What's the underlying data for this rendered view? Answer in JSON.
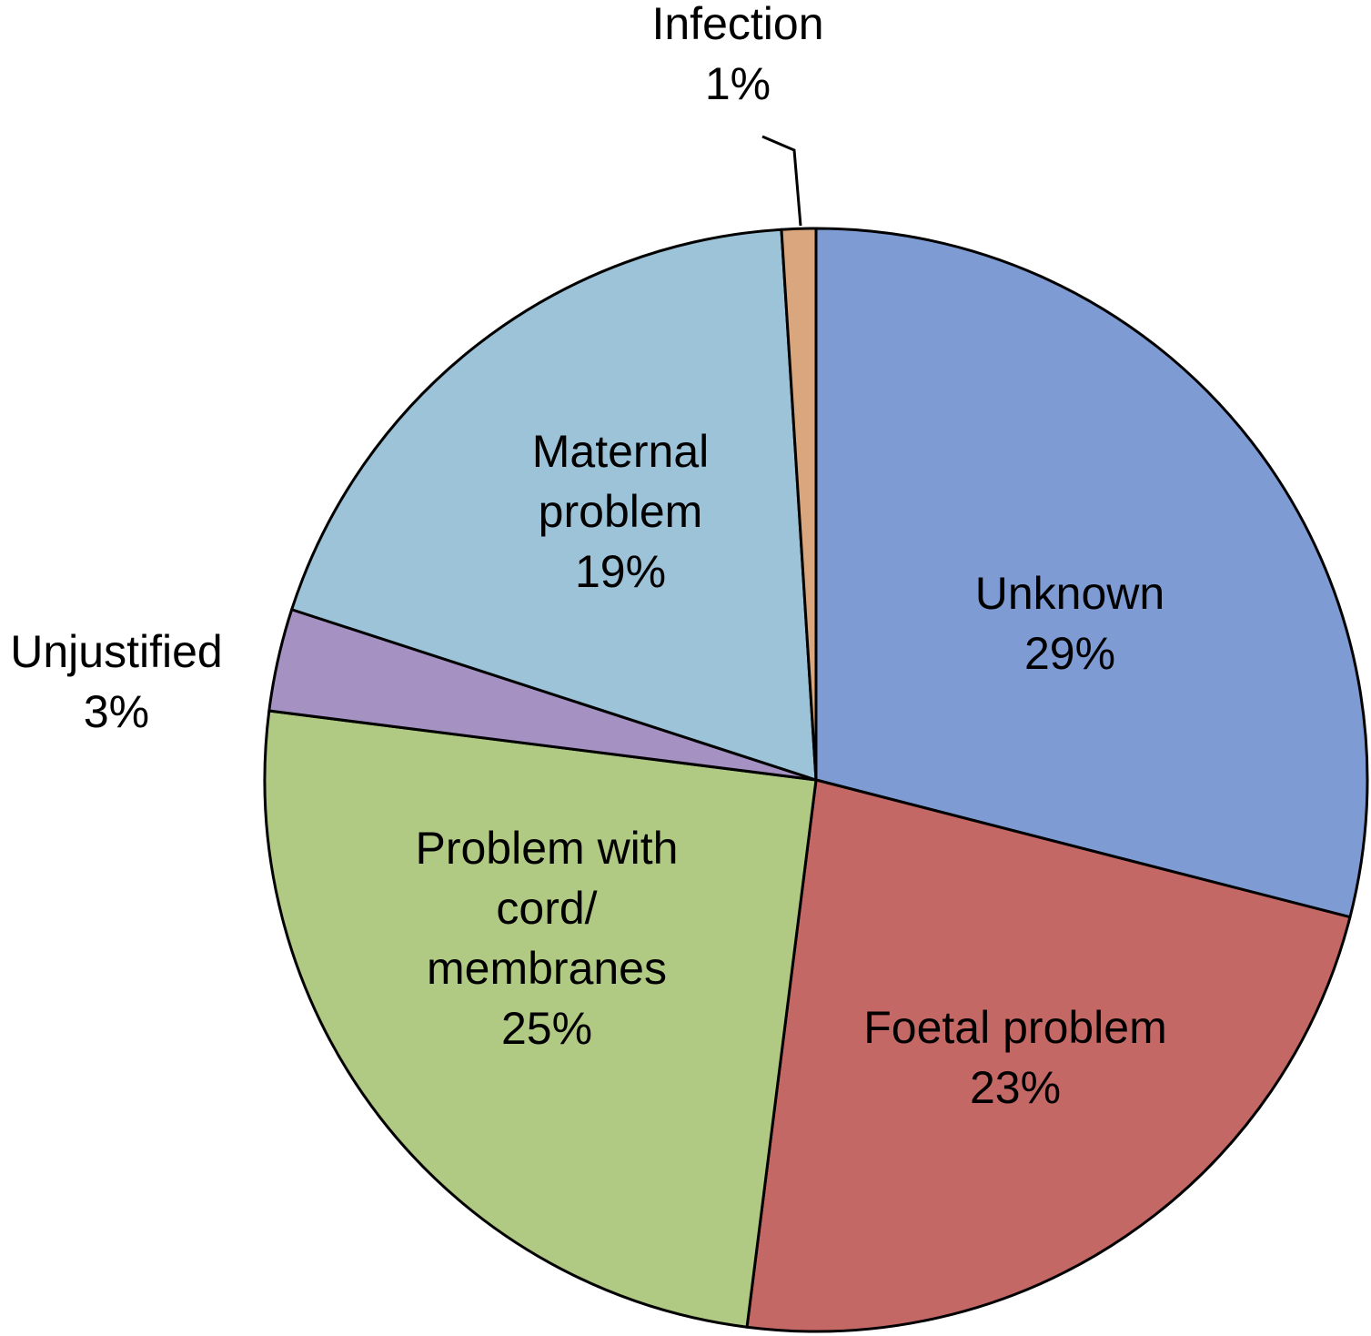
{
  "chart_data": {
    "type": "pie",
    "title": "",
    "start_angle_deg": 0,
    "direction": "clockwise",
    "slices": [
      {
        "label": "Unknown",
        "label_lines": [
          "Unknown"
        ],
        "value": 29,
        "value_text": "29%",
        "color": "#7F9BD3"
      },
      {
        "label": "Foetal problem",
        "label_lines": [
          "Foetal problem"
        ],
        "value": 23,
        "value_text": "23%",
        "color": "#C46866"
      },
      {
        "label": "Problem with cord/ membranes",
        "label_lines": [
          "Problem with",
          "cord/",
          "membranes"
        ],
        "value": 25,
        "value_text": "25%",
        "color": "#B1CA83"
      },
      {
        "label": "Unjustified",
        "label_lines": [
          "Unjustified"
        ],
        "value": 3,
        "value_text": "3%",
        "color": "#A592C3"
      },
      {
        "label": "Maternal problem",
        "label_lines": [
          "Maternal",
          "problem"
        ],
        "value": 19,
        "value_text": "19%",
        "color": "#9DC3D9"
      },
      {
        "label": "Infection",
        "label_lines": [
          "Infection"
        ],
        "value": 1,
        "value_text": "1%",
        "color": "#D9A67E"
      }
    ]
  }
}
